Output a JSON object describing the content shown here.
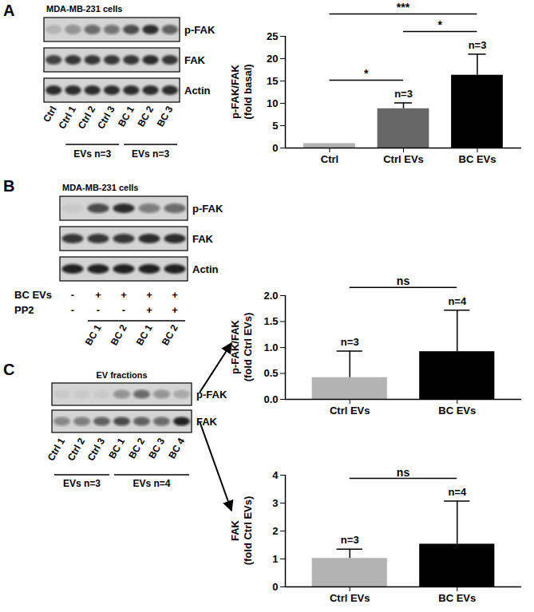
{
  "chart_data": [
    {
      "type": "bar",
      "categories": [
        "Ctrl",
        "Ctrl EVs",
        "BC EVs"
      ],
      "values": [
        1,
        8.8,
        16.3
      ],
      "errors": [
        null,
        1.3,
        4.7
      ],
      "n_labels": [
        null,
        "n=3",
        "n=3"
      ],
      "colors": [
        "#b3b3b3",
        "#666666",
        "#000000"
      ],
      "ylim": [
        0,
        25
      ],
      "yticks": [
        0,
        5,
        10,
        15,
        20,
        25
      ],
      "y_label": [
        "p-FAK/FAK",
        "(fold basal)"
      ],
      "comparisons": [
        {
          "between": [
            "Ctrl",
            "Ctrl EVs"
          ],
          "label": "*"
        },
        {
          "between": [
            "Ctrl EVs",
            "BC EVs"
          ],
          "label": "*"
        },
        {
          "between": [
            "Ctrl",
            "BC EVs"
          ],
          "label": "***"
        }
      ]
    },
    {
      "type": "bar",
      "categories": [
        "Ctrl EVs",
        "BC EVs"
      ],
      "values": [
        0.42,
        0.92
      ],
      "errors": [
        0.51,
        0.8
      ],
      "n_labels": [
        "n=3",
        "n=4"
      ],
      "colors": [
        "#b3b3b3",
        "#000000"
      ],
      "ylim": [
        0,
        2
      ],
      "yticks": [
        {
          "value": 0,
          "label": "0.0"
        },
        {
          "value": 0.5,
          "label": "0.5"
        },
        {
          "value": 1,
          "label": "1.0"
        },
        {
          "value": 1.5,
          "label": "1.5"
        },
        {
          "value": 2,
          "label": "2.0"
        }
      ],
      "y_label": [
        "p-FAK/FAK",
        "(fold Ctrl EVs)"
      ],
      "comparisons": [
        {
          "between": [
            "Ctrl EVs",
            "BC EVs"
          ],
          "label": "ns"
        }
      ]
    },
    {
      "type": "bar",
      "categories": [
        "Ctrl EVs",
        "BC EVs"
      ],
      "values": [
        1.02,
        1.53
      ],
      "errors": [
        0.33,
        1.54
      ],
      "n_labels": [
        "n=3",
        "n=4"
      ],
      "colors": [
        "#b3b3b3",
        "#000000"
      ],
      "ylim": [
        0,
        4
      ],
      "yticks": [
        0,
        1,
        2,
        3,
        4
      ],
      "y_label": [
        "FAK",
        "(fold Ctrl EVs)"
      ],
      "comparisons": [
        {
          "between": [
            "Ctrl EVs",
            "BC EVs"
          ],
          "label": "ns"
        }
      ]
    }
  ],
  "blots": [
    {
      "panel": "A",
      "title": "MDA-MB-231 cells",
      "rows": [
        {
          "label": "p-FAK",
          "band_intensity": [
            0.15,
            0.35,
            0.55,
            0.5,
            0.7,
            0.85,
            0.6
          ]
        },
        {
          "label": "FAK",
          "band_intensity": [
            0.75,
            0.8,
            0.8,
            0.8,
            0.8,
            0.85,
            0.8
          ]
        },
        {
          "label": "Actin",
          "band_intensity": [
            0.85,
            0.85,
            0.85,
            0.85,
            0.85,
            0.85,
            0.85
          ]
        }
      ],
      "lanes": [
        "Ctrl",
        "Ctrl 1",
        "Ctrl 2",
        "Ctrl 3",
        "BC 1",
        "BC 2",
        "BC 3"
      ],
      "groups": [
        {
          "label": "EVs n=3",
          "lanes": [
            1,
            3
          ]
        },
        {
          "label": "EVs n=3",
          "lanes": [
            4,
            6
          ]
        }
      ]
    },
    {
      "panel": "B",
      "title": "MDA-MB-231 cells",
      "rows": [
        {
          "label": "p-FAK",
          "band_intensity": [
            0.05,
            0.7,
            0.85,
            0.45,
            0.55
          ]
        },
        {
          "label": "FAK",
          "band_intensity": [
            0.8,
            0.8,
            0.8,
            0.85,
            0.85
          ]
        },
        {
          "label": "Actin",
          "band_intensity": [
            0.9,
            0.9,
            0.9,
            0.9,
            0.9
          ]
        }
      ],
      "treatments": [
        {
          "label": "BC EVs",
          "marks": [
            "-",
            "+",
            "+",
            "+",
            "+"
          ]
        },
        {
          "label": "PP2",
          "marks": [
            "-",
            "-",
            "-",
            "+",
            "+"
          ]
        }
      ],
      "lanes": [
        null,
        "BC 1",
        "BC 2",
        "BC 1",
        "BC 2"
      ],
      "groups": [
        {
          "label": null,
          "lanes": [
            1,
            4
          ]
        }
      ]
    },
    {
      "panel": "C",
      "title": "EV fractions",
      "rows": [
        {
          "label": "p-FAK",
          "band_intensity": [
            0.05,
            0.05,
            0.05,
            0.35,
            0.55,
            0.35,
            0.2
          ]
        },
        {
          "label": "FAK",
          "band_intensity": [
            0.4,
            0.45,
            0.6,
            0.7,
            0.6,
            0.55,
            0.9
          ]
        }
      ],
      "lanes": [
        "Ctrl 1",
        "Ctrl 2",
        "Ctrl 3",
        "BC 1",
        "BC 2",
        "BC 3",
        "BC 4"
      ],
      "groups": [
        {
          "label": "EVs n=3",
          "lanes": [
            0,
            2
          ]
        },
        {
          "label": "EVs n=4",
          "lanes": [
            3,
            6
          ]
        }
      ]
    }
  ]
}
